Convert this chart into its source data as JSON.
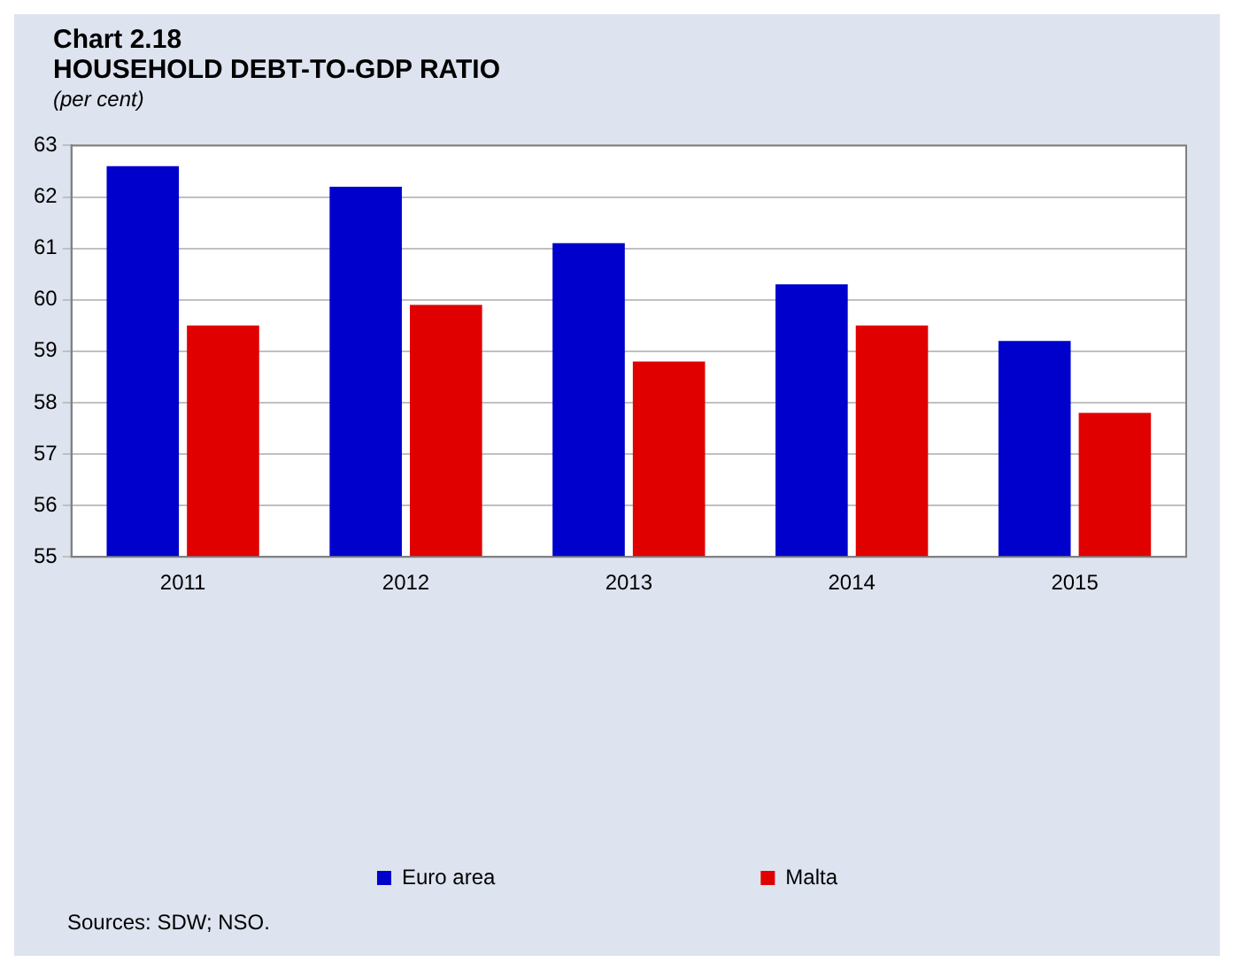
{
  "chart_data": {
    "type": "bar",
    "title": "Chart 2.18\nHOUSEHOLD DEBT-TO-GDP RATIO",
    "subtitle": "(per cent)",
    "categories": [
      "2011",
      "2012",
      "2013",
      "2014",
      "2015"
    ],
    "series": [
      {
        "name": "Euro area",
        "color": "#0000cc",
        "values": [
          62.6,
          62.2,
          61.1,
          60.3,
          59.2
        ]
      },
      {
        "name": "Malta",
        "color": "#e00000",
        "values": [
          59.5,
          59.9,
          58.8,
          59.5,
          57.8
        ]
      }
    ],
    "ylim": [
      55,
      63
    ],
    "yticks": [
      55,
      56,
      57,
      58,
      59,
      60,
      61,
      62,
      63
    ],
    "grid": "y",
    "legend": "bottom",
    "annotations": [
      "Sources: SDW; NSO."
    ]
  }
}
